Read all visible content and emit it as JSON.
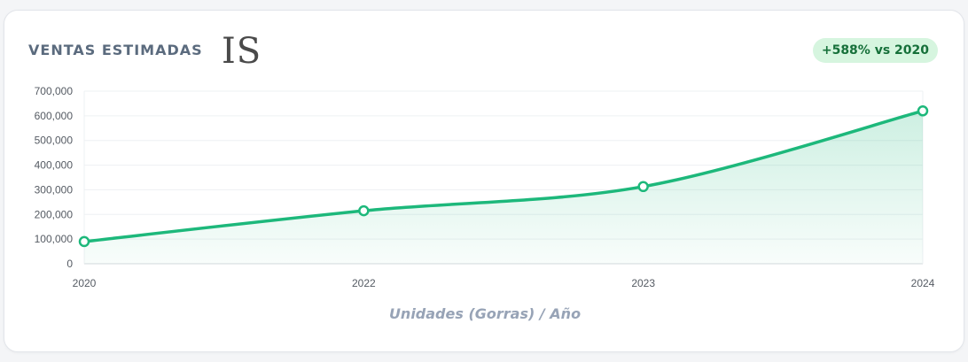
{
  "header": {
    "title": "VENTAS ESTIMADAS",
    "logo_text": "IS",
    "badge": "+588% vs 2020"
  },
  "colors": {
    "line": "#1db87b",
    "badge_bg": "#d6f5df",
    "badge_text": "#16703a"
  },
  "chart_data": {
    "type": "area",
    "x": [
      "2020",
      "2022",
      "2023",
      "2024"
    ],
    "values": [
      90000,
      215000,
      313000,
      620000
    ],
    "ylim": [
      0,
      700000
    ],
    "yticks": [
      0,
      100000,
      200000,
      300000,
      400000,
      500000,
      600000,
      700000
    ],
    "ytick_labels": [
      "0",
      "100,000",
      "200,000",
      "300,000",
      "400,000",
      "500,000",
      "600,000",
      "700,000"
    ],
    "xlabel": "Unidades (Gorras) / Año",
    "grid": true
  }
}
